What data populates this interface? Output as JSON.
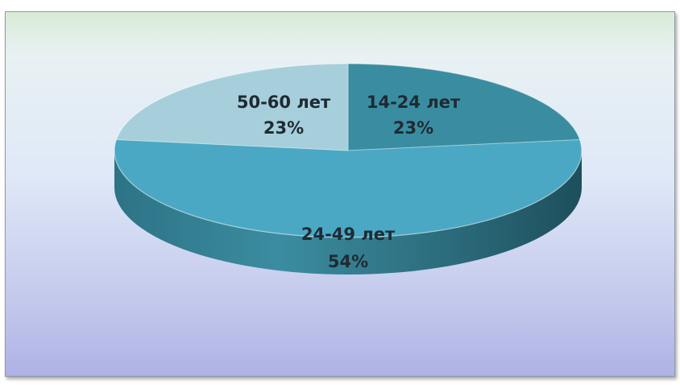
{
  "chart_data": {
    "type": "pie",
    "style": "3d",
    "categories": [
      "14-24 лет",
      "24-49 лет",
      "50-60 лет"
    ],
    "values": [
      23,
      54,
      23
    ],
    "value_labels": [
      "23%",
      "54%",
      "23%"
    ],
    "title": "",
    "legend": "none",
    "colors": {
      "14-24": "#3a8da1",
      "24-49": "#4aa8c4",
      "50-60": "#a6cfdb",
      "side": "#2f7f93"
    }
  }
}
